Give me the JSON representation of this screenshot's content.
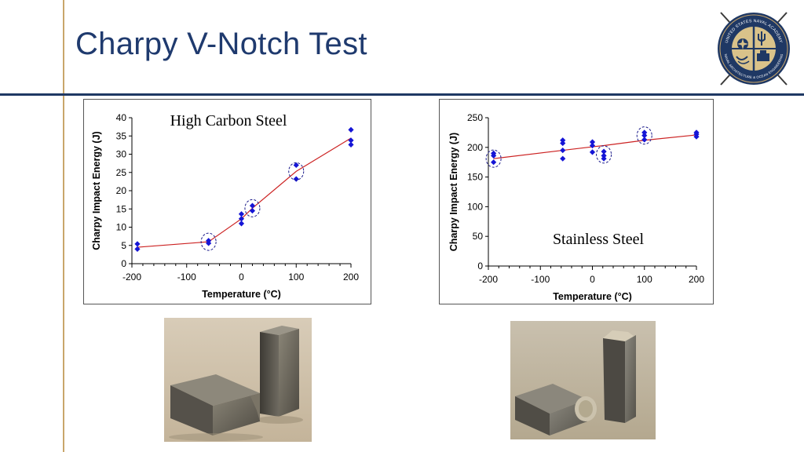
{
  "slide": {
    "title": "Charpy V-Notch Test"
  },
  "logo": {
    "icon": "naval-academy-seal-icon",
    "ring_text_top": "UNITED STATES NAVAL ACADEMY",
    "ring_text_bottom": "NAVAL ARCHITECTURE & OCEAN ENGINEERING"
  },
  "chart_data": [
    {
      "type": "scatter",
      "title": "High Carbon Steel",
      "xlabel": "Temperature (°C)",
      "ylabel": "Charpy Impact Energy (J)",
      "xlim": [
        -200,
        200
      ],
      "ylim": [
        0,
        40
      ],
      "x_ticks": [
        -200,
        -100,
        0,
        100,
        200
      ],
      "y_ticks": [
        0,
        5,
        10,
        15,
        20,
        25,
        30,
        35,
        40
      ],
      "x_tick_labels": [
        "-200",
        "-100",
        "0",
        "100",
        "200"
      ],
      "y_tick_labels": [
        "0",
        "5",
        "10",
        "15",
        "20",
        "25",
        "30",
        "35",
        "40"
      ],
      "points": [
        {
          "x": -190,
          "y": 5.4
        },
        {
          "x": -190,
          "y": 4.0
        },
        {
          "x": -60,
          "y": 6.3
        },
        {
          "x": -60,
          "y": 5.6
        },
        {
          "x": 0,
          "y": 13.6
        },
        {
          "x": 0,
          "y": 12.3
        },
        {
          "x": 0,
          "y": 11.0
        },
        {
          "x": 20,
          "y": 15.9
        },
        {
          "x": 20,
          "y": 14.5
        },
        {
          "x": 100,
          "y": 27.0
        },
        {
          "x": 100,
          "y": 23.2
        },
        {
          "x": 200,
          "y": 36.7
        },
        {
          "x": 200,
          "y": 33.8
        },
        {
          "x": 200,
          "y": 32.6
        }
      ],
      "fit_line": [
        {
          "x": -190,
          "y": 4.5
        },
        {
          "x": -60,
          "y": 6.0
        },
        {
          "x": 0,
          "y": 12.3
        },
        {
          "x": 20,
          "y": 15.2
        },
        {
          "x": 100,
          "y": 25.3
        },
        {
          "x": 200,
          "y": 34.4
        }
      ],
      "circled": [
        {
          "x": -60,
          "y": 6.0
        },
        {
          "x": 20,
          "y": 15.2
        },
        {
          "x": 100,
          "y": 25.3
        }
      ],
      "grid": false,
      "marker_color": "#1515d6",
      "line_color": "#cc2222"
    },
    {
      "type": "scatter",
      "title": "Stainless Steel",
      "xlabel": "Temperature (°C)",
      "ylabel": "Charpy Impact Energy (J)",
      "xlim": [
        -200,
        200
      ],
      "ylim": [
        0,
        250
      ],
      "x_ticks": [
        -200,
        -100,
        0,
        100,
        200
      ],
      "y_ticks": [
        0,
        50,
        100,
        150,
        200,
        250
      ],
      "x_tick_labels": [
        "-200",
        "-100",
        "0",
        "100",
        "200"
      ],
      "y_tick_labels": [
        "0",
        "50",
        "100",
        "150",
        "200",
        "250"
      ],
      "points": [
        {
          "x": -190,
          "y": 190
        },
        {
          "x": -190,
          "y": 186
        },
        {
          "x": -190,
          "y": 175
        },
        {
          "x": -57,
          "y": 212
        },
        {
          "x": -57,
          "y": 207
        },
        {
          "x": -57,
          "y": 195
        },
        {
          "x": -57,
          "y": 181
        },
        {
          "x": 0,
          "y": 209
        },
        {
          "x": 0,
          "y": 203
        },
        {
          "x": 0,
          "y": 192
        },
        {
          "x": 22,
          "y": 193
        },
        {
          "x": 22,
          "y": 186
        },
        {
          "x": 22,
          "y": 181
        },
        {
          "x": 100,
          "y": 225
        },
        {
          "x": 100,
          "y": 220
        },
        {
          "x": 100,
          "y": 213
        },
        {
          "x": 200,
          "y": 225
        },
        {
          "x": 200,
          "y": 222
        },
        {
          "x": 200,
          "y": 218
        }
      ],
      "fit_line": [
        {
          "x": -190,
          "y": 181
        },
        {
          "x": -57,
          "y": 195
        },
        {
          "x": 0,
          "y": 201
        },
        {
          "x": 22,
          "y": 203
        },
        {
          "x": 100,
          "y": 212
        },
        {
          "x": 200,
          "y": 221
        }
      ],
      "circled": [
        {
          "x": -190,
          "y": 181
        },
        {
          "x": 22,
          "y": 188
        },
        {
          "x": 100,
          "y": 220
        }
      ],
      "grid": false,
      "marker_color": "#1515d6",
      "line_color": "#cc2222"
    }
  ],
  "photos": [
    {
      "icon": "fractured-high-carbon-steel-specimen-photo"
    },
    {
      "icon": "fractured-stainless-steel-specimen-photo"
    }
  ]
}
